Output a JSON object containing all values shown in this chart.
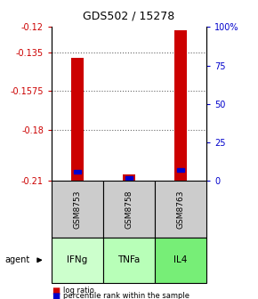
{
  "title": "GDS502 / 15278",
  "samples": [
    "GSM8753",
    "GSM8758",
    "GSM8763"
  ],
  "agents": [
    "IFNg",
    "TNFa",
    "IL4"
  ],
  "agent_colors": [
    "#ccffcc",
    "#b8ffb8",
    "#77ee77"
  ],
  "sample_bg": "#cccccc",
  "ymin": -0.21,
  "ymax": -0.12,
  "yticks_left": [
    -0.12,
    -0.135,
    -0.1575,
    -0.18,
    -0.21
  ],
  "yticks_right": [
    100,
    75,
    50,
    25,
    0
  ],
  "log_ratios": [
    -0.138,
    -0.206,
    -0.122
  ],
  "percentile_ranks": [
    6,
    2,
    7
  ],
  "bar_bottom": -0.21,
  "red_color": "#cc0000",
  "blue_color": "#0000cc",
  "grid_color": "#666666",
  "left_axis_color": "#cc0000",
  "right_axis_color": "#0000cc",
  "bar_width": 0.25
}
